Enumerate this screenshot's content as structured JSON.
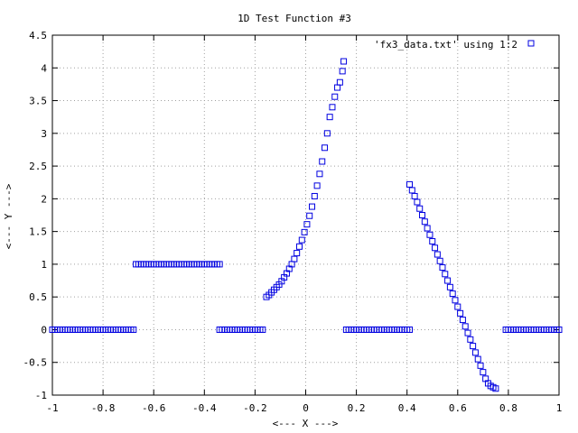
{
  "chart_data": {
    "type": "scatter",
    "title": "1D Test Function #3",
    "xlabel": "<--- X --->",
    "ylabel": "<--- Y --->",
    "xlim": [
      -1,
      1
    ],
    "ylim": [
      -1,
      4.5
    ],
    "x_ticks": [
      -1,
      -0.8,
      -0.6,
      -0.4,
      -0.2,
      0,
      0.2,
      0.4,
      0.6,
      0.8,
      1
    ],
    "x_tick_labels": [
      "-1",
      "-0.8",
      "-0.6",
      "-0.4",
      "-0.2",
      "0",
      "0.2",
      "0.4",
      "0.6",
      "0.8",
      "1"
    ],
    "y_ticks": [
      -1,
      -0.5,
      0,
      0.5,
      1,
      1.5,
      2,
      2.5,
      3,
      3.5,
      4,
      4.5
    ],
    "y_tick_labels": [
      "-1",
      "-0.5",
      "0",
      "0.5",
      "1",
      "1.5",
      "2",
      "2.5",
      "3",
      "3.5",
      "4",
      "4.5"
    ],
    "grid": true,
    "legend_position": "top-right",
    "marker": "open-square",
    "color": "#0000e0",
    "series": [
      {
        "name": "'fx3_data.txt' using 1:2",
        "x": [
          -1.0,
          -0.99,
          -0.98,
          -0.97,
          -0.96,
          -0.95,
          -0.94,
          -0.93,
          -0.92,
          -0.91,
          -0.9,
          -0.89,
          -0.88,
          -0.87,
          -0.86,
          -0.85,
          -0.84,
          -0.83,
          -0.82,
          -0.81,
          -0.8,
          -0.79,
          -0.78,
          -0.77,
          -0.76,
          -0.75,
          -0.74,
          -0.73,
          -0.72,
          -0.71,
          -0.7,
          -0.69,
          -0.68,
          -0.67,
          -0.66,
          -0.65,
          -0.64,
          -0.63,
          -0.62,
          -0.61,
          -0.6,
          -0.59,
          -0.58,
          -0.57,
          -0.56,
          -0.55,
          -0.54,
          -0.53,
          -0.52,
          -0.51,
          -0.5,
          -0.49,
          -0.48,
          -0.47,
          -0.46,
          -0.45,
          -0.44,
          -0.43,
          -0.42,
          -0.41,
          -0.4,
          -0.39,
          -0.38,
          -0.37,
          -0.36,
          -0.35,
          -0.34,
          -0.34,
          -0.33,
          -0.32,
          -0.31,
          -0.3,
          -0.29,
          -0.28,
          -0.27,
          -0.26,
          -0.25,
          -0.24,
          -0.23,
          -0.22,
          -0.21,
          -0.2,
          -0.19,
          -0.18,
          -0.17,
          -0.155,
          -0.145,
          -0.135,
          -0.125,
          -0.115,
          -0.105,
          -0.095,
          -0.085,
          -0.075,
          -0.065,
          -0.055,
          -0.045,
          -0.035,
          -0.025,
          -0.015,
          -0.005,
          0.005,
          0.015,
          0.025,
          0.035,
          0.045,
          0.055,
          0.065,
          0.075,
          0.085,
          0.095,
          0.105,
          0.115,
          0.125,
          0.135,
          0.145,
          0.15,
          0.16,
          0.17,
          0.18,
          0.19,
          0.2,
          0.21,
          0.22,
          0.23,
          0.24,
          0.25,
          0.26,
          0.27,
          0.28,
          0.29,
          0.3,
          0.31,
          0.32,
          0.33,
          0.34,
          0.35,
          0.36,
          0.37,
          0.38,
          0.39,
          0.4,
          0.41,
          0.41,
          0.42,
          0.43,
          0.44,
          0.45,
          0.46,
          0.47,
          0.48,
          0.49,
          0.5,
          0.51,
          0.52,
          0.53,
          0.54,
          0.55,
          0.56,
          0.57,
          0.58,
          0.59,
          0.6,
          0.61,
          0.62,
          0.63,
          0.64,
          0.65,
          0.66,
          0.67,
          0.68,
          0.69,
          0.7,
          0.71,
          0.72,
          0.73,
          0.74,
          0.75,
          0.79,
          0.8,
          0.81,
          0.82,
          0.83,
          0.84,
          0.85,
          0.86,
          0.87,
          0.88,
          0.89,
          0.9,
          0.91,
          0.92,
          0.93,
          0.94,
          0.95,
          0.96,
          0.97,
          0.98,
          0.99,
          1.0
        ],
        "y": [
          0,
          0,
          0,
          0,
          0,
          0,
          0,
          0,
          0,
          0,
          0,
          0,
          0,
          0,
          0,
          0,
          0,
          0,
          0,
          0,
          0,
          0,
          0,
          0,
          0,
          0,
          0,
          0,
          0,
          0,
          0,
          0,
          0,
          1,
          1,
          1,
          1,
          1,
          1,
          1,
          1,
          1,
          1,
          1,
          1,
          1,
          1,
          1,
          1,
          1,
          1,
          1,
          1,
          1,
          1,
          1,
          1,
          1,
          1,
          1,
          1,
          1,
          1,
          1,
          1,
          1,
          1,
          0,
          0,
          0,
          0,
          0,
          0,
          0,
          0,
          0,
          0,
          0,
          0,
          0,
          0,
          0,
          0,
          0,
          0,
          0.5,
          0.53,
          0.57,
          0.61,
          0.65,
          0.69,
          0.74,
          0.8,
          0.86,
          0.93,
          1.0,
          1.08,
          1.17,
          1.27,
          1.37,
          1.49,
          1.61,
          1.74,
          1.88,
          2.04,
          2.2,
          2.38,
          2.57,
          2.78,
          3.0,
          3.25,
          3.4,
          3.56,
          3.7,
          3.78,
          3.95,
          4.1,
          0,
          0,
          0,
          0,
          0,
          0,
          0,
          0,
          0,
          0,
          0,
          0,
          0,
          0,
          0,
          0,
          0,
          0,
          0,
          0,
          0,
          0,
          0,
          0,
          0,
          0,
          2.22,
          2.13,
          2.04,
          1.95,
          1.85,
          1.75,
          1.65,
          1.55,
          1.45,
          1.35,
          1.25,
          1.15,
          1.05,
          0.95,
          0.85,
          0.75,
          0.65,
          0.55,
          0.45,
          0.35,
          0.25,
          0.15,
          0.05,
          -0.05,
          -0.15,
          -0.25,
          -0.35,
          -0.45,
          -0.55,
          -0.65,
          -0.75,
          -0.82,
          -0.86,
          -0.88,
          -0.9,
          0,
          0,
          0,
          0,
          0,
          0,
          0,
          0,
          0,
          0,
          0,
          0,
          0,
          0,
          0,
          0,
          0,
          0,
          0,
          0,
          0,
          0
        ]
      }
    ]
  }
}
